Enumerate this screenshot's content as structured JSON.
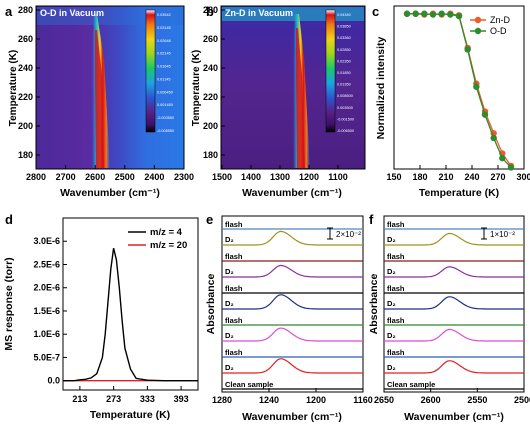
{
  "panels": {
    "a": {
      "letter": "a",
      "title": "O-D in Vacuum",
      "xlabel": "Wavenumber (cm⁻¹)",
      "ylabel": "Temperature (K)",
      "xticks": [
        "2800",
        "2700",
        "2600",
        "2500",
        "2400",
        "2300"
      ],
      "yticks": [
        "280",
        "260",
        "240",
        "220",
        "200",
        "180"
      ],
      "colorbar": [
        "0.03542",
        "0.03145",
        "0.02648",
        "0.02145",
        "0.01645",
        "0.01145",
        "0.006450",
        "0.001450",
        "-0.003550",
        "-0.008550"
      ]
    },
    "b": {
      "letter": "b",
      "title": "Zn-D in Vacuum",
      "xlabel": "Wavenumber (cm⁻¹)",
      "xticks": [
        "1500",
        "1400",
        "1300",
        "1200",
        "1100"
      ],
      "yticks": [
        "280",
        "260",
        "240",
        "220",
        "200",
        "180"
      ],
      "colorbar": [
        "0.04340",
        "0.03850",
        "0.03360",
        "0.02850",
        "0.02350",
        "0.01850",
        "0.01350",
        "0.008500",
        "0.003500",
        "-0.001500",
        "-0.006500"
      ]
    },
    "c": {
      "letter": "c",
      "xlabel": "Temperature (K)",
      "ylabel": "Normalized intensity",
      "xticks": [
        "150",
        "180",
        "210",
        "240",
        "270",
        "300"
      ],
      "legend": [
        "Zn-D",
        "O-D"
      ]
    },
    "d": {
      "letter": "d",
      "xlabel": "Temperature (K)",
      "ylabel": "MS response (torr)",
      "xticks": [
        "213",
        "273",
        "333",
        "393"
      ],
      "yticks": [
        "3.0E-6",
        "2.5E-6",
        "2.0E-6",
        "1.5E-6",
        "1.0E-6",
        "5.0E-7",
        "0.0"
      ],
      "legend": [
        "m/z = 4",
        "m/z = 20"
      ]
    },
    "e": {
      "letter": "e",
      "xlabel": "Wavenumber (cm⁻¹)",
      "ylabel": "Absorbance",
      "xticks": [
        "1280",
        "1240",
        "1200",
        "1160"
      ],
      "scale": "2×10⁻²",
      "trace_labels": [
        "flash",
        "D₂",
        "flash",
        "D₂",
        "flash",
        "D₂",
        "flash",
        "D₂",
        "flash",
        "D₂",
        "Clean sample"
      ]
    },
    "f": {
      "letter": "f",
      "xlabel": "Wavenumber (cm⁻¹)",
      "ylabel": "Absorbance",
      "xticks": [
        "2650",
        "2600",
        "2550",
        "2500"
      ],
      "scale": "1×10⁻²",
      "trace_labels": [
        "flash",
        "D₂",
        "flash",
        "D₂",
        "flash",
        "D₂",
        "flash",
        "D₂",
        "flash",
        "D₂",
        "Clean sample"
      ]
    }
  },
  "chart_data": [
    {
      "panel": "a",
      "type": "heatmap",
      "title": "O-D in Vacuum",
      "xlabel": "Wavenumber (cm⁻¹)",
      "ylabel": "Temperature (K)",
      "xlim": [
        2800,
        2300
      ],
      "ylim": [
        165,
        283
      ],
      "peak_center": 2580,
      "note_colors": {
        "low": "#5a1f86",
        "mid": "#2a6fd6",
        "high": "#d6121b"
      }
    },
    {
      "panel": "b",
      "type": "heatmap",
      "title": "Zn-D in Vacuum",
      "xlabel": "Wavenumber (cm⁻¹)",
      "xlim": [
        1500,
        1050
      ],
      "ylim": [
        165,
        283
      ],
      "peak_center": 1230
    },
    {
      "panel": "c",
      "type": "line",
      "xlabel": "Temperature (K)",
      "ylabel": "Normalized intensity",
      "xlim": [
        150,
        300
      ],
      "ylim": [
        0,
        1.05
      ],
      "series": [
        {
          "name": "Zn-D",
          "color": "#f05a28",
          "x": [
            165,
            175,
            185,
            195,
            205,
            215,
            225,
            235,
            245,
            255,
            265,
            275,
            285
          ],
          "y": [
            1.0,
            1.0,
            0.995,
            1.0,
            0.995,
            1.0,
            0.99,
            0.78,
            0.55,
            0.37,
            0.23,
            0.1,
            0.02
          ]
        },
        {
          "name": "O-D",
          "color": "#2e8b2e",
          "x": [
            165,
            175,
            185,
            195,
            205,
            215,
            225,
            235,
            245,
            255,
            265,
            275,
            285
          ],
          "y": [
            1.0,
            1.0,
            1.0,
            0.995,
            1.0,
            0.995,
            0.985,
            0.77,
            0.53,
            0.35,
            0.2,
            0.07,
            0.01
          ]
        }
      ]
    },
    {
      "panel": "d",
      "type": "line",
      "xlabel": "Temperature (K)",
      "ylabel": "MS response (torr)",
      "xlim": [
        183,
        423
      ],
      "ylim": [
        -2e-07,
        3.5e-06
      ],
      "series": [
        {
          "name": "m/z = 4",
          "color": "#000000",
          "x": [
            183,
            203,
            213,
            223,
            233,
            243,
            253,
            258,
            263,
            268,
            273,
            278,
            283,
            288,
            293,
            303,
            313,
            333,
            363,
            423
          ],
          "y": [
            0,
            0,
            2e-08,
            3e-08,
            6e-08,
            1.5e-07,
            5e-07,
            1e-06,
            1.7e-06,
            2.4e-06,
            2.85e-06,
            2.6e-06,
            2e-06,
            1.3e-06,
            7e-07,
            2.5e-07,
            5e-08,
            1e-08,
            0,
            0
          ]
        },
        {
          "name": "m/z = 20",
          "color": "#e02020",
          "x": [
            183,
            423
          ],
          "y": [
            0,
            0
          ]
        }
      ]
    },
    {
      "panel": "e",
      "type": "line",
      "xlabel": "Wavenumber (cm⁻¹)",
      "ylabel": "Absorbance",
      "xlim": [
        1280,
        1160
      ],
      "peak_center": 1230,
      "series": [
        {
          "name": "flash",
          "color": "#4a86c8",
          "peak": 0
        },
        {
          "name": "D₂",
          "color": "#a3901a",
          "peak": 1.0
        },
        {
          "name": "flash",
          "color": "#8b1a1a",
          "peak": 0
        },
        {
          "name": "D₂",
          "color": "#8b2fa0",
          "peak": 0.85
        },
        {
          "name": "flash",
          "color": "#000000",
          "peak": 0
        },
        {
          "name": "D₂",
          "color": "#1f2f8b",
          "peak": 1.05
        },
        {
          "name": "flash",
          "color": "#2e8b2e",
          "peak": 0
        },
        {
          "name": "D₂",
          "color": "#e04bd6",
          "peak": 0.95
        },
        {
          "name": "flash",
          "color": "#2a5fb8",
          "peak": 0
        },
        {
          "name": "D₂",
          "color": "#e02020",
          "peak": 1.05
        },
        {
          "name": "Clean sample",
          "color": "#000000",
          "peak": 0
        }
      ]
    },
    {
      "panel": "f",
      "type": "line",
      "xlabel": "Wavenumber (cm⁻¹)",
      "ylabel": "Absorbance",
      "xlim": [
        2650,
        2500
      ],
      "peak_center": 2580,
      "series": [
        {
          "name": "flash",
          "color": "#4a86c8",
          "peak": 0
        },
        {
          "name": "D₂",
          "color": "#a3901a",
          "peak": 0.85
        },
        {
          "name": "flash",
          "color": "#8b1a1a",
          "peak": 0
        },
        {
          "name": "D₂",
          "color": "#8b2fa0",
          "peak": 0.75
        },
        {
          "name": "flash",
          "color": "#000000",
          "peak": 0
        },
        {
          "name": "D₂",
          "color": "#1f2f8b",
          "peak": 0.9
        },
        {
          "name": "flash",
          "color": "#2e8b2e",
          "peak": 0
        },
        {
          "name": "D₂",
          "color": "#e04bd6",
          "peak": 0.85
        },
        {
          "name": "flash",
          "color": "#2a5fb8",
          "peak": 0
        },
        {
          "name": "D₂",
          "color": "#e02020",
          "peak": 0.9
        },
        {
          "name": "Clean sample",
          "color": "#000000",
          "peak": 0
        }
      ]
    }
  ]
}
